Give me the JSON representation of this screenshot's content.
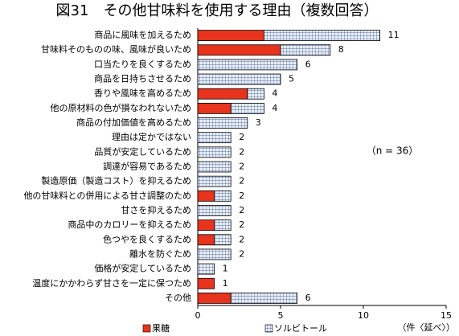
{
  "chart_data": {
    "type": "stacked-bar-horizontal",
    "title": "図31　その他甘味料を使用する理由（複数回答）",
    "categories": [
      "商品に風味を加えるため",
      "甘味料そのものの味、風味が良いため",
      "口当たりを良くするため",
      "商品を日持ちさせるため",
      "香りや風味を高めるため",
      "他の原材料の色が損なわれないため",
      "商品の付加価値を高めるため",
      "理由は定かではない",
      "品質が安定しているため",
      "調達が容易であるため",
      "製造原価（製造コスト）を抑えるため",
      "他の甘味料との併用による甘さ調整のため",
      "甘さを抑えるため",
      "商品中のカロリーを抑えるため",
      "色つやを良くするため",
      "離水を防ぐため",
      "価格が安定しているため",
      "温度にかかわらず甘さを一定に保つため",
      "その他"
    ],
    "series": [
      {
        "name": "果糖",
        "color": "#e8341c",
        "values": [
          4,
          5,
          0,
          0,
          3,
          2,
          0,
          0,
          0,
          0,
          0,
          1,
          0,
          1,
          1,
          0,
          0,
          1,
          2
        ]
      },
      {
        "name": "ソルビトール",
        "color": "#e9eff9",
        "values": [
          7,
          3,
          6,
          5,
          1,
          2,
          3,
          2,
          2,
          2,
          2,
          1,
          2,
          1,
          1,
          2,
          1,
          0,
          4
        ]
      }
    ],
    "totals": [
      11,
      8,
      6,
      5,
      4,
      4,
      3,
      2,
      2,
      2,
      2,
      2,
      2,
      2,
      2,
      2,
      1,
      1,
      6
    ],
    "xlim": [
      0,
      15
    ],
    "xticks": [
      0,
      5,
      10,
      15
    ],
    "x_label": "（件〈延べ〉）",
    "annotation": "（n = 36）"
  }
}
